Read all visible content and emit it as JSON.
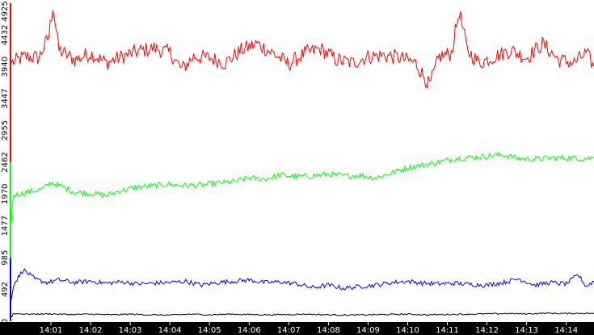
{
  "chart_data": {
    "type": "line",
    "title": "",
    "xlabel": "",
    "ylabel": "",
    "ylim": [
      0,
      4925
    ],
    "grid": false,
    "legend": "none",
    "x_tick_labels": [
      "14:01",
      "14:02",
      "14:03",
      "14:04",
      "14:05",
      "14:06",
      "14:07",
      "14:08",
      "14:09",
      "14:10",
      "14:11",
      "14:12",
      "14:13",
      "14:14"
    ],
    "y_tick_labels": [
      "0",
      "492",
      "985",
      "1477",
      "1970",
      "2462",
      "2955",
      "3447",
      "3940",
      "4432",
      "4925"
    ],
    "y_ticks": [
      0,
      492,
      985,
      1477,
      1970,
      2462,
      2955,
      3447,
      3940,
      4432,
      4925
    ],
    "y_tick_colors": [
      "#000000",
      "#0000ff",
      "#0000ff",
      "#00ff00",
      "#00ff00",
      "#00ff00",
      "#ff0000",
      "#ff0000",
      "#ff0000",
      "#ff0000",
      "#ff0000"
    ],
    "x_range_minutes": [
      0.0,
      14.7
    ],
    "series": [
      {
        "color": "#ff0000",
        "points": [
          [
            0.0,
            4000
          ],
          [
            0.35,
            4100
          ],
          [
            0.7,
            4080
          ],
          [
            0.95,
            4420
          ],
          [
            1.05,
            4900
          ],
          [
            1.2,
            4200
          ],
          [
            1.6,
            4050
          ],
          [
            2.0,
            4150
          ],
          [
            2.4,
            4000
          ],
          [
            2.8,
            4100
          ],
          [
            3.2,
            4180
          ],
          [
            3.6,
            4230
          ],
          [
            4.0,
            4160
          ],
          [
            4.3,
            3900
          ],
          [
            4.6,
            4100
          ],
          [
            5.0,
            4080
          ],
          [
            5.4,
            4000
          ],
          [
            5.8,
            4200
          ],
          [
            6.2,
            4300
          ],
          [
            6.6,
            4150
          ],
          [
            7.0,
            3980
          ],
          [
            7.4,
            4150
          ],
          [
            7.8,
            4220
          ],
          [
            8.2,
            4050
          ],
          [
            8.6,
            4000
          ],
          [
            9.0,
            4100
          ],
          [
            9.4,
            4120
          ],
          [
            9.8,
            4080
          ],
          [
            10.2,
            4000
          ],
          [
            10.55,
            3650
          ],
          [
            10.8,
            4100
          ],
          [
            11.1,
            4150
          ],
          [
            11.3,
            4800
          ],
          [
            11.5,
            4200
          ],
          [
            11.8,
            4000
          ],
          [
            12.2,
            4100
          ],
          [
            12.6,
            4200
          ],
          [
            13.0,
            4080
          ],
          [
            13.4,
            4300
          ],
          [
            13.8,
            4050
          ],
          [
            14.2,
            4000
          ],
          [
            14.5,
            4150
          ],
          [
            14.7,
            3950
          ]
        ]
      },
      {
        "color": "#00ff00",
        "points": [
          [
            0.0,
            1520
          ],
          [
            0.05,
            1950
          ],
          [
            0.4,
            2000
          ],
          [
            0.8,
            2050
          ],
          [
            1.0,
            2150
          ],
          [
            1.3,
            2080
          ],
          [
            1.6,
            2000
          ],
          [
            2.0,
            1980
          ],
          [
            2.4,
            1950
          ],
          [
            2.8,
            2030
          ],
          [
            3.2,
            2080
          ],
          [
            3.6,
            2100
          ],
          [
            4.0,
            2120
          ],
          [
            4.4,
            2100
          ],
          [
            4.8,
            2110
          ],
          [
            5.2,
            2140
          ],
          [
            5.6,
            2160
          ],
          [
            6.0,
            2220
          ],
          [
            6.4,
            2200
          ],
          [
            6.8,
            2270
          ],
          [
            7.2,
            2240
          ],
          [
            7.6,
            2250
          ],
          [
            8.0,
            2280
          ],
          [
            8.4,
            2250
          ],
          [
            8.8,
            2260
          ],
          [
            9.2,
            2220
          ],
          [
            9.6,
            2300
          ],
          [
            10.0,
            2380
          ],
          [
            10.4,
            2420
          ],
          [
            10.8,
            2470
          ],
          [
            11.2,
            2520
          ],
          [
            11.6,
            2540
          ],
          [
            12.0,
            2560
          ],
          [
            12.4,
            2580
          ],
          [
            12.8,
            2520
          ],
          [
            13.2,
            2510
          ],
          [
            13.6,
            2530
          ],
          [
            14.0,
            2530
          ],
          [
            14.4,
            2520
          ],
          [
            14.7,
            2530
          ]
        ]
      },
      {
        "color": "#0000ff",
        "points": [
          [
            0.0,
            340
          ],
          [
            0.05,
            560
          ],
          [
            0.3,
            800
          ],
          [
            0.6,
            650
          ],
          [
            0.9,
            600
          ],
          [
            1.2,
            640
          ],
          [
            1.6,
            600
          ],
          [
            2.0,
            620
          ],
          [
            2.4,
            590
          ],
          [
            2.8,
            610
          ],
          [
            3.2,
            580
          ],
          [
            3.6,
            590
          ],
          [
            4.0,
            600
          ],
          [
            4.4,
            620
          ],
          [
            4.8,
            560
          ],
          [
            5.2,
            600
          ],
          [
            5.6,
            620
          ],
          [
            6.0,
            640
          ],
          [
            6.4,
            600
          ],
          [
            6.8,
            610
          ],
          [
            7.2,
            580
          ],
          [
            7.6,
            520
          ],
          [
            8.0,
            560
          ],
          [
            8.4,
            510
          ],
          [
            8.8,
            540
          ],
          [
            9.2,
            560
          ],
          [
            9.6,
            600
          ],
          [
            10.0,
            620
          ],
          [
            10.4,
            590
          ],
          [
            10.8,
            580
          ],
          [
            11.2,
            590
          ],
          [
            11.6,
            570
          ],
          [
            12.0,
            560
          ],
          [
            12.4,
            600
          ],
          [
            12.8,
            660
          ],
          [
            13.2,
            560
          ],
          [
            13.6,
            600
          ],
          [
            14.0,
            580
          ],
          [
            14.3,
            720
          ],
          [
            14.5,
            540
          ],
          [
            14.7,
            620
          ]
        ]
      },
      {
        "color": "#000000",
        "points": [
          [
            0.0,
            60
          ],
          [
            0.05,
            120
          ],
          [
            0.5,
            110
          ],
          [
            1.0,
            115
          ],
          [
            1.5,
            105
          ],
          [
            2.0,
            110
          ],
          [
            2.5,
            100
          ],
          [
            3.0,
            110
          ],
          [
            3.5,
            100
          ],
          [
            4.0,
            95
          ],
          [
            4.5,
            110
          ],
          [
            5.0,
            100
          ],
          [
            5.5,
            110
          ],
          [
            6.0,
            105
          ],
          [
            6.5,
            100
          ],
          [
            7.0,
            105
          ],
          [
            7.5,
            110
          ],
          [
            8.0,
            100
          ],
          [
            8.5,
            95
          ],
          [
            9.0,
            100
          ],
          [
            9.5,
            105
          ],
          [
            10.0,
            110
          ],
          [
            10.5,
            100
          ],
          [
            11.0,
            105
          ],
          [
            11.5,
            110
          ],
          [
            12.0,
            115
          ],
          [
            12.5,
            120
          ],
          [
            13.0,
            115
          ],
          [
            13.5,
            125
          ],
          [
            14.0,
            120
          ],
          [
            14.5,
            125
          ],
          [
            14.7,
            120
          ]
        ]
      }
    ]
  }
}
